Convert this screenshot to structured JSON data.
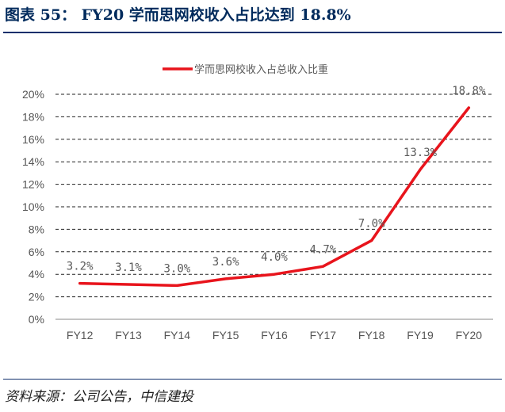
{
  "figure": {
    "title": "图表 55：  FY20 学而思网校收入占比达到 18.8%",
    "source": "资料来源：公司公告，中信建投"
  },
  "chart_data": {
    "type": "line",
    "title": "",
    "xlabel": "",
    "ylabel": "",
    "categories": [
      "FY12",
      "FY13",
      "FY14",
      "FY15",
      "FY16",
      "FY17",
      "FY18",
      "FY19",
      "FY20"
    ],
    "series": [
      {
        "name": "学而思网校收入占总收入比重",
        "values": [
          3.2,
          3.1,
          3.0,
          3.6,
          4.0,
          4.7,
          7.0,
          13.3,
          18.8
        ],
        "data_labels": [
          "3.2%",
          "3.1%",
          "3.0%",
          "3.6%",
          "4.0%",
          "4.7%",
          "7.0%",
          "13.3%",
          "18.8%"
        ],
        "color": "#e8141c"
      }
    ],
    "ylim": [
      0,
      20
    ],
    "yticks": [
      0,
      2,
      4,
      6,
      8,
      10,
      12,
      14,
      16,
      18,
      20
    ],
    "ytick_labels": [
      "0%",
      "2%",
      "4%",
      "6%",
      "8%",
      "10%",
      "12%",
      "14%",
      "16%",
      "18%",
      "20%"
    ],
    "grid": true,
    "grid_style": "dashed",
    "legend_position": "top-center"
  },
  "colors": {
    "title": "#002a5c",
    "rule": "#0f2f6b",
    "line": "#e8141c",
    "grid": "#222222"
  }
}
